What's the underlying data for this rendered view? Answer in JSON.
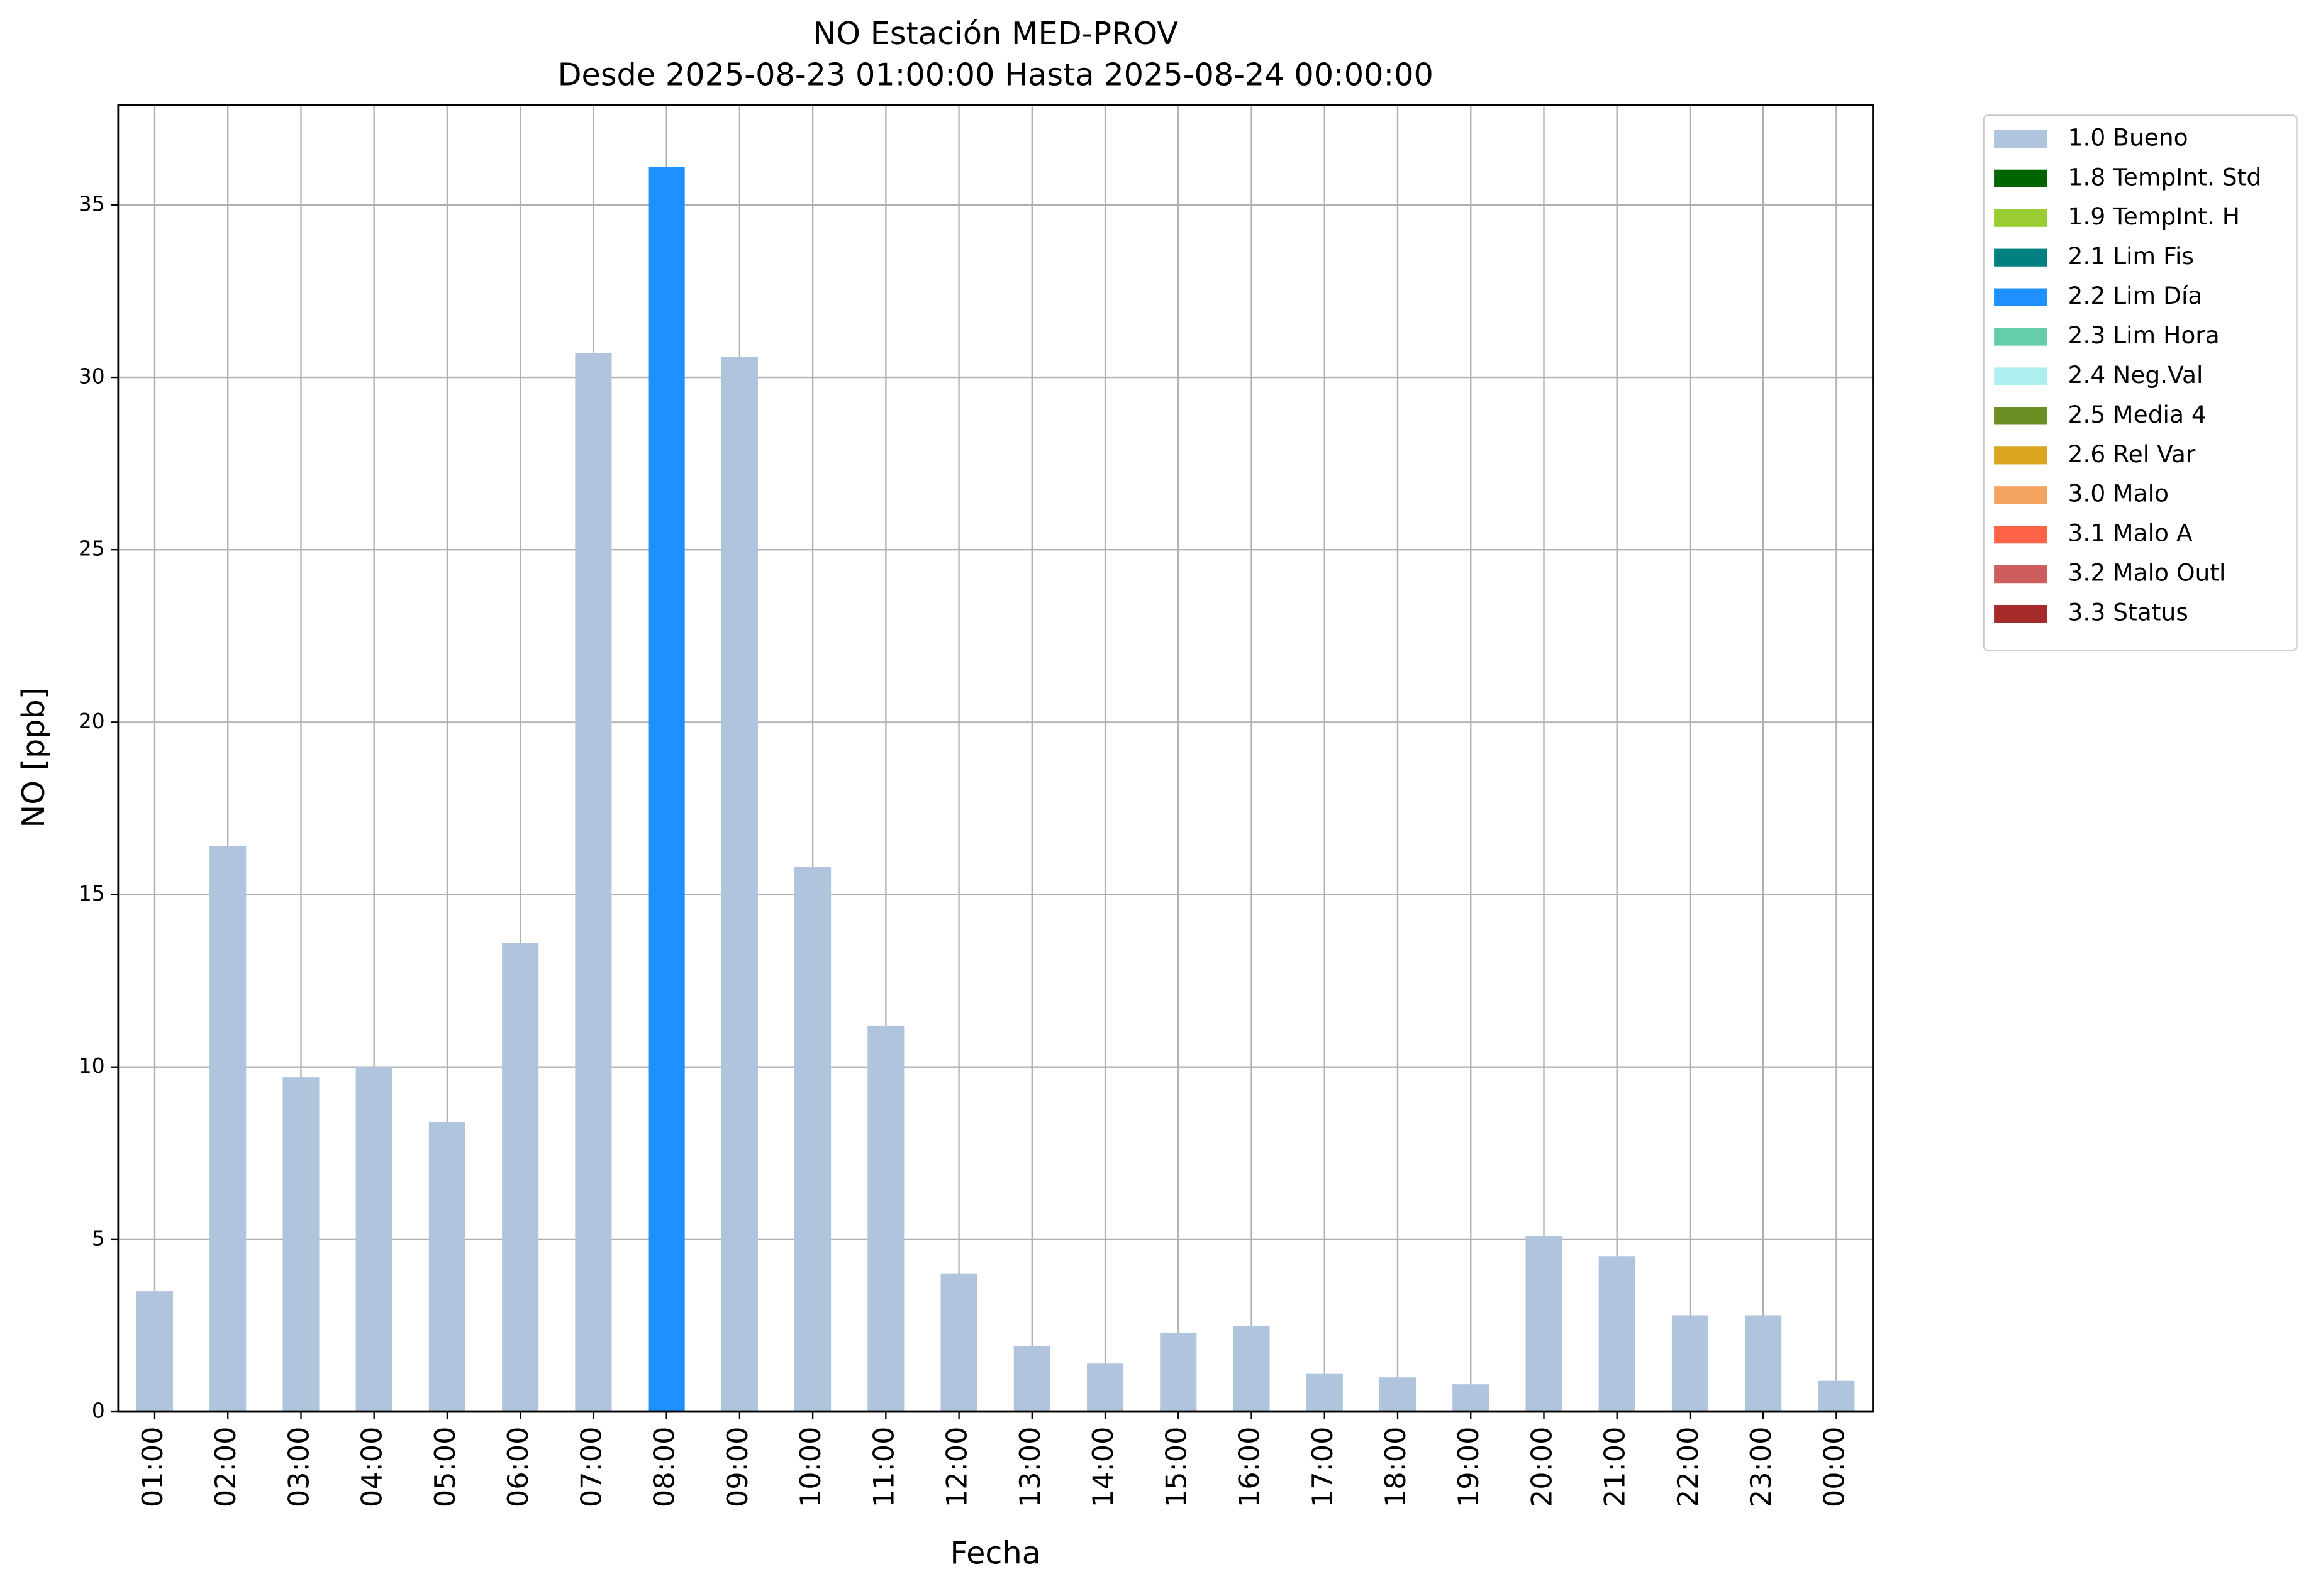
{
  "chart_data": {
    "type": "stacked_bar",
    "title": "NO Estación MED-PROV",
    "subtitle": "Desde 2025-08-23 01:00:00 Hasta 2025-08-24 00:00:00",
    "x_label": "Fecha",
    "y_label": "NO [ppb]",
    "categories": [
      "01:00",
      "02:00",
      "03:00",
      "04:00",
      "05:00",
      "06:00",
      "07:00",
      "08:00",
      "09:00",
      "10:00",
      "11:00",
      "12:00",
      "13:00",
      "14:00",
      "15:00",
      "16:00",
      "17:00",
      "18:00",
      "19:00",
      "20:00",
      "21:00",
      "22:00",
      "23:00",
      "00:00"
    ],
    "series": [
      {
        "name": "1.0 Bueno",
        "color": "#b0c4de",
        "values": [
          3.5,
          16.4,
          9.7,
          10.0,
          8.4,
          13.6,
          30.7,
          null,
          30.6,
          15.8,
          11.2,
          4.0,
          1.9,
          1.4,
          2.3,
          2.5,
          1.1,
          1.0,
          0.8,
          5.1,
          4.5,
          2.8,
          2.8,
          0.9
        ]
      },
      {
        "name": "1.8 TempInt. Std",
        "color": "#006400",
        "values": [
          null,
          null,
          null,
          null,
          null,
          null,
          null,
          null,
          null,
          null,
          null,
          null,
          null,
          null,
          null,
          null,
          null,
          null,
          null,
          null,
          null,
          null,
          null,
          null
        ]
      },
      {
        "name": "1.9 TempInt. H",
        "color": "#9acd32",
        "values": [
          null,
          null,
          null,
          null,
          null,
          null,
          null,
          null,
          null,
          null,
          null,
          null,
          null,
          null,
          null,
          null,
          null,
          null,
          null,
          null,
          null,
          null,
          null,
          null
        ]
      },
      {
        "name": "2.1 Lim Fis",
        "color": "#008080",
        "values": [
          null,
          null,
          null,
          null,
          null,
          null,
          null,
          null,
          null,
          null,
          null,
          null,
          null,
          null,
          null,
          null,
          null,
          null,
          null,
          null,
          null,
          null,
          null,
          null
        ]
      },
      {
        "name": "2.2 Lim Día",
        "color": "#1e90ff",
        "values": [
          null,
          null,
          null,
          null,
          null,
          null,
          null,
          36.1,
          null,
          null,
          null,
          null,
          null,
          null,
          null,
          null,
          null,
          null,
          null,
          null,
          null,
          null,
          null,
          null
        ]
      },
      {
        "name": "2.3 Lim Hora",
        "color": "#66cdaa",
        "values": [
          null,
          null,
          null,
          null,
          null,
          null,
          null,
          null,
          null,
          null,
          null,
          null,
          null,
          null,
          null,
          null,
          null,
          null,
          null,
          null,
          null,
          null,
          null,
          null
        ]
      },
      {
        "name": "2.4 Neg.Val",
        "color": "#afeeee",
        "values": [
          null,
          null,
          null,
          null,
          null,
          null,
          null,
          null,
          null,
          null,
          null,
          null,
          null,
          null,
          null,
          null,
          null,
          null,
          null,
          null,
          null,
          null,
          null,
          null
        ]
      },
      {
        "name": "2.5 Media 4",
        "color": "#6b8e23",
        "values": [
          null,
          null,
          null,
          null,
          null,
          null,
          null,
          null,
          null,
          null,
          null,
          null,
          null,
          null,
          null,
          null,
          null,
          null,
          null,
          null,
          null,
          null,
          null,
          null
        ]
      },
      {
        "name": "2.6 Rel Var",
        "color": "#daa520",
        "values": [
          null,
          null,
          null,
          null,
          null,
          null,
          null,
          null,
          null,
          null,
          null,
          null,
          null,
          null,
          null,
          null,
          null,
          null,
          null,
          null,
          null,
          null,
          null,
          null
        ]
      },
      {
        "name": "3.0 Malo",
        "color": "#f4a460",
        "values": [
          null,
          null,
          null,
          null,
          null,
          null,
          null,
          null,
          null,
          null,
          null,
          null,
          null,
          null,
          null,
          null,
          null,
          null,
          null,
          null,
          null,
          null,
          null,
          null
        ]
      },
      {
        "name": "3.1 Malo A",
        "color": "#ff6347",
        "values": [
          null,
          null,
          null,
          null,
          null,
          null,
          null,
          null,
          null,
          null,
          null,
          null,
          null,
          null,
          null,
          null,
          null,
          null,
          null,
          null,
          null,
          null,
          null,
          null
        ]
      },
      {
        "name": "3.2 Malo Outl",
        "color": "#cd5c5c",
        "values": [
          null,
          null,
          null,
          null,
          null,
          null,
          null,
          null,
          null,
          null,
          null,
          null,
          null,
          null,
          null,
          null,
          null,
          null,
          null,
          null,
          null,
          null,
          null,
          null
        ]
      },
      {
        "name": "3.3 Status",
        "color": "#a52a2a",
        "values": [
          null,
          null,
          null,
          null,
          null,
          null,
          null,
          null,
          null,
          null,
          null,
          null,
          null,
          null,
          null,
          null,
          null,
          null,
          null,
          null,
          null,
          null,
          null,
          null
        ]
      }
    ],
    "ylim": [
      0,
      37.9
    ],
    "yticks": [
      0,
      5,
      10,
      15,
      20,
      25,
      30,
      35
    ],
    "grid": true,
    "legend": "outside-right"
  }
}
